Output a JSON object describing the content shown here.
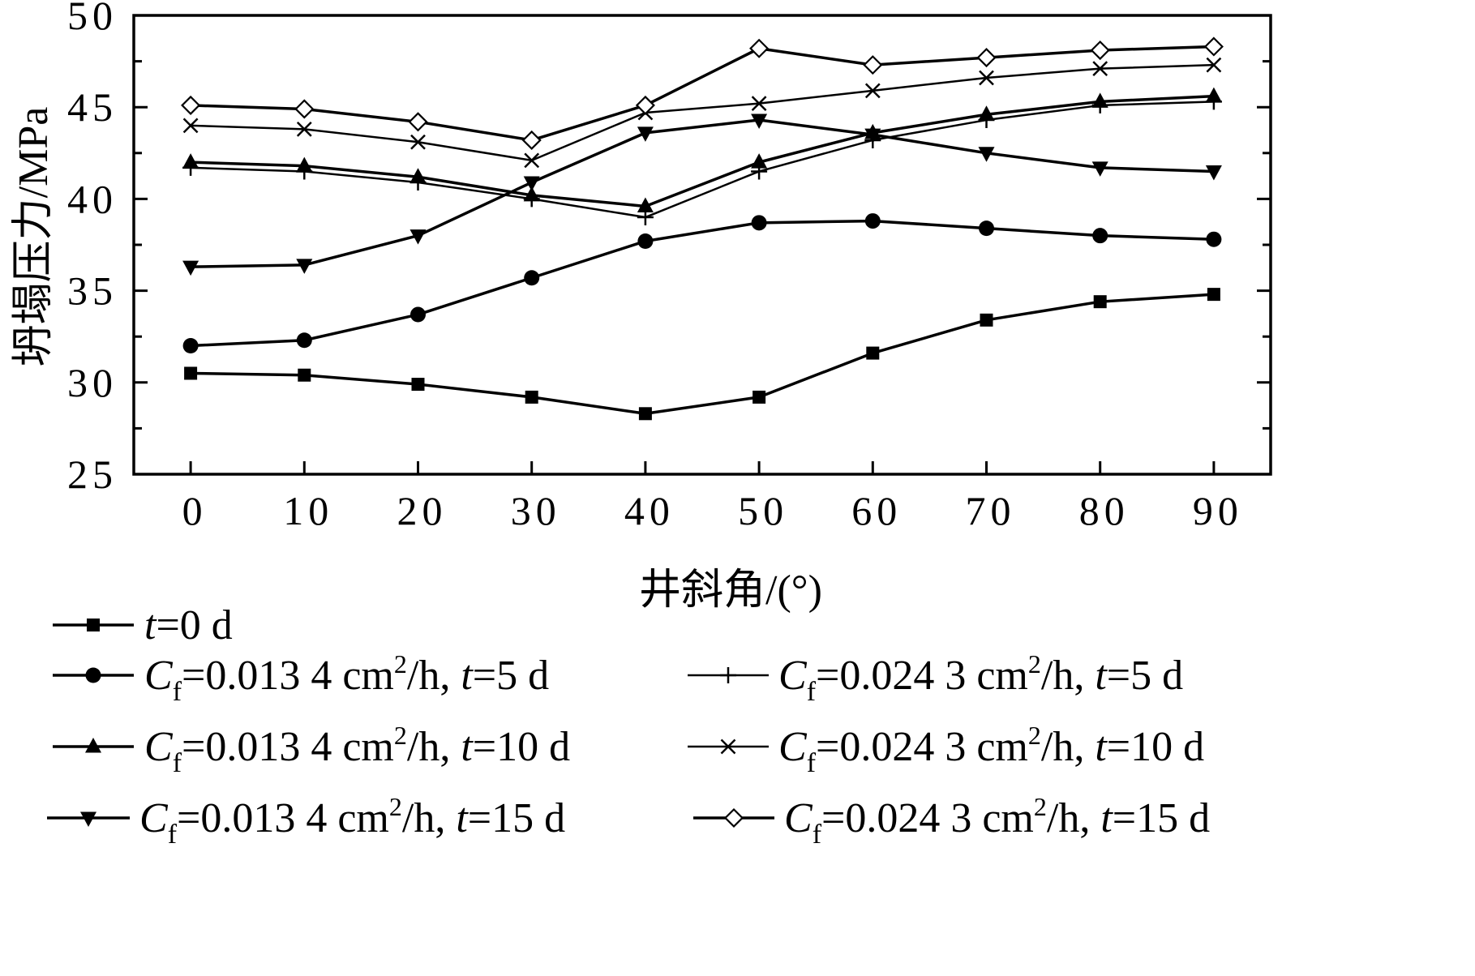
{
  "chart_data": {
    "type": "line",
    "xlabel": "井斜角/(°)",
    "ylabel": "坍塌压力/MPa",
    "xlim": [
      -5,
      95
    ],
    "ylim": [
      25,
      50
    ],
    "x": [
      0,
      10,
      20,
      30,
      40,
      50,
      60,
      70,
      80,
      90
    ],
    "x_ticks": [
      "0",
      "10",
      "20",
      "30",
      "40",
      "50",
      "60",
      "70",
      "80",
      "90"
    ],
    "y_ticks": [
      "25",
      "30",
      "35",
      "40",
      "45",
      "50"
    ],
    "legend_placement": "bottom, below x-axis title",
    "series": [
      {
        "name": "t=0 d",
        "marker": "square-filled",
        "legend": {
          "italic": "t",
          "post": "=0 d"
        },
        "values": [
          30.5,
          30.4,
          29.9,
          29.2,
          28.3,
          29.2,
          31.6,
          33.4,
          34.4,
          34.8
        ]
      },
      {
        "name": "Cf=0.013 4 cm2/h, t=5 d",
        "marker": "circle-filled",
        "legend": {
          "italic": "C",
          "sub": "f",
          "mid": "=0.013 4 cm",
          "sup": "2",
          "mid2": "/h, ",
          "italic2": "t",
          "post": "=5 d"
        },
        "values": [
          32.0,
          32.3,
          33.7,
          35.7,
          37.7,
          38.7,
          38.8,
          38.4,
          38.0,
          37.8
        ]
      },
      {
        "name": "Cf=0.013 4 cm2/h, t=10 d",
        "marker": "triangle-up-filled",
        "legend": {
          "italic": "C",
          "sub": "f",
          "mid": "=0.013 4 cm",
          "sup": "2",
          "mid2": "/h, ",
          "italic2": "t",
          "post": "=10 d"
        },
        "values": [
          42.0,
          41.8,
          41.2,
          40.2,
          39.6,
          42.0,
          43.6,
          44.6,
          45.3,
          45.6
        ]
      },
      {
        "name": "Cf=0.013 4 cm2/h, t=15 d",
        "marker": "triangle-down-filled",
        "legend": {
          "italic": "C",
          "sub": "f",
          "mid": "=0.013 4 cm",
          "sup": "2",
          "mid2": "/h, ",
          "italic2": "t",
          "post": "=15 d"
        },
        "values": [
          36.3,
          36.4,
          38.0,
          40.9,
          43.6,
          44.3,
          43.5,
          42.5,
          41.7,
          41.5
        ]
      },
      {
        "name": "Cf=0.024 3 cm2/h, t=5 d",
        "marker": "plus",
        "legend": {
          "italic": "C",
          "sub": "f",
          "mid": "=0.024 3 cm",
          "sup": "2",
          "mid2": "/h, ",
          "italic2": "t",
          "post": "=5 d"
        },
        "values": [
          41.7,
          41.5,
          40.9,
          40.0,
          39.0,
          41.5,
          43.2,
          44.3,
          45.1,
          45.3
        ]
      },
      {
        "name": "Cf=0.024 3 cm2/h, t=10 d",
        "marker": "x",
        "legend": {
          "italic": "C",
          "sub": "f",
          "mid": "=0.024 3 cm",
          "sup": "2",
          "mid2": "/h, ",
          "italic2": "t",
          "post": "=10 d"
        },
        "values": [
          44.0,
          43.8,
          43.1,
          42.1,
          44.7,
          45.2,
          45.9,
          46.6,
          47.1,
          47.3
        ]
      },
      {
        "name": "Cf=0.024 3 cm2/h, t=15 d",
        "marker": "diamond-open",
        "legend": {
          "italic": "C",
          "sub": "f",
          "mid": "=0.024 3 cm",
          "sup": "2",
          "mid2": "/h, ",
          "italic2": "t",
          "post": "=15 d"
        },
        "values": [
          45.1,
          44.9,
          44.2,
          43.2,
          45.1,
          48.2,
          47.3,
          47.7,
          48.1,
          48.3
        ]
      }
    ]
  }
}
